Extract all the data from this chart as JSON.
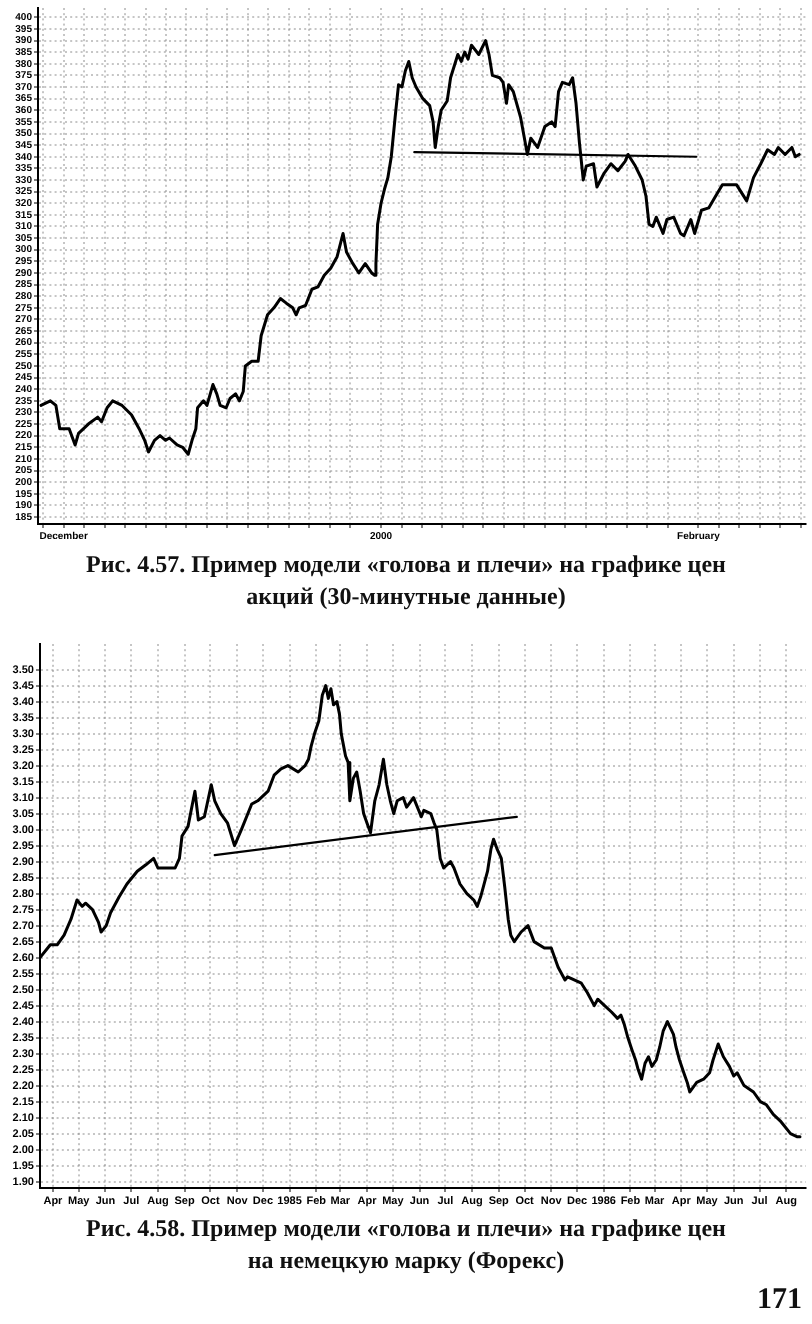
{
  "chart_data": [
    {
      "type": "line",
      "title": "Рис. 4.57. Пример модели «голова и плечи» на графике цен акций (30-минутные данные)",
      "xlim": [
        "1999-11-28T12:00",
        "2000-02-11T12:00"
      ],
      "xticks": [
        {
          "value": "1999-11-29",
          "label": null
        },
        {
          "value": "1999-12-01",
          "label": "December"
        },
        {
          "value": "1999-12-03",
          "label": null
        },
        {
          "value": "1999-12-05",
          "label": null
        },
        {
          "value": "1999-12-07",
          "label": null
        },
        {
          "value": "1999-12-09",
          "label": null
        },
        {
          "value": "1999-12-11",
          "label": null
        },
        {
          "value": "1999-12-13",
          "label": null
        },
        {
          "value": "1999-12-15",
          "label": null
        },
        {
          "value": "1999-12-17",
          "label": null
        },
        {
          "value": "1999-12-19",
          "label": null
        },
        {
          "value": "1999-12-21",
          "label": null
        },
        {
          "value": "1999-12-23",
          "label": null
        },
        {
          "value": "1999-12-25",
          "label": null
        },
        {
          "value": "1999-12-27",
          "label": null
        },
        {
          "value": "1999-12-29",
          "label": null
        },
        {
          "value": "2000-01-01",
          "label": "2000"
        },
        {
          "value": "2000-01-03",
          "label": null
        },
        {
          "value": "2000-01-05",
          "label": null
        },
        {
          "value": "2000-01-07",
          "label": null
        },
        {
          "value": "2000-01-09",
          "label": null
        },
        {
          "value": "2000-01-11",
          "label": null
        },
        {
          "value": "2000-01-13",
          "label": null
        },
        {
          "value": "2000-01-15",
          "label": null
        },
        {
          "value": "2000-01-17",
          "label": null
        },
        {
          "value": "2000-01-19",
          "label": null
        },
        {
          "value": "2000-01-21",
          "label": null
        },
        {
          "value": "2000-01-23",
          "label": null
        },
        {
          "value": "2000-01-25",
          "label": null
        },
        {
          "value": "2000-01-27",
          "label": null
        },
        {
          "value": "2000-01-29",
          "label": null
        },
        {
          "value": "2000-02-01",
          "label": "February"
        },
        {
          "value": "2000-02-03",
          "label": null
        },
        {
          "value": "2000-02-05",
          "label": null
        },
        {
          "value": "2000-02-07",
          "label": null
        },
        {
          "value": "2000-02-09",
          "label": null
        },
        {
          "value": "2000-02-11",
          "label": null
        }
      ],
      "ylim": [
        182,
        404
      ],
      "yticks": [
        185,
        190,
        195,
        200,
        205,
        210,
        215,
        220,
        225,
        230,
        235,
        240,
        245,
        250,
        255,
        260,
        265,
        270,
        275,
        280,
        285,
        290,
        295,
        300,
        305,
        310,
        315,
        320,
        325,
        330,
        335,
        340,
        345,
        350,
        355,
        360,
        365,
        370,
        375,
        380,
        385,
        390,
        395,
        400
      ],
      "grid": true,
      "series": [
        {
          "color": "#000000",
          "x": [
            "1999-11-28T19:00",
            "1999-11-29T17:00",
            "1999-11-30T06:00",
            "1999-11-30T15:00",
            "1999-12-01T13:00",
            "1999-12-02T03:00",
            "1999-12-02T11:00",
            "1999-12-03T10:00",
            "1999-12-04T08:00",
            "1999-12-04T17:00",
            "1999-12-05T06:00",
            "1999-12-05T19:00",
            "1999-12-06T17:00",
            "1999-12-07T15:00",
            "1999-12-08T09:00",
            "1999-12-08T22:00",
            "1999-12-09T07:00",
            "1999-12-09T21:00",
            "1999-12-10T10:00",
            "1999-12-10T23:00",
            "1999-12-11T08:00",
            "1999-12-12T02:00",
            "1999-12-12T15:00",
            "1999-12-13T04:00",
            "1999-12-13T13:00",
            "1999-12-13T22:00",
            "1999-12-14T02:00",
            "1999-12-14T16:00",
            "1999-12-15T00:00",
            "1999-12-15T14:00",
            "1999-12-15T23:00",
            "1999-12-16T07:00",
            "1999-12-16T21:00",
            "1999-12-17T06:00",
            "1999-12-17T19:00",
            "1999-12-18T04:00",
            "1999-12-18T13:00",
            "1999-12-18T18:00",
            "1999-12-19T09:00",
            "1999-12-20T00:00",
            "1999-12-20T07:00",
            "1999-12-20T22:00",
            "1999-12-21T13:00",
            "1999-12-22T04:00",
            "1999-12-22T18:00",
            "1999-12-23T09:00",
            "1999-12-23T17:00",
            "1999-12-24T00:00",
            "1999-12-24T15:00",
            "1999-12-25T06:00",
            "1999-12-25T20:00",
            "1999-12-26T11:00",
            "1999-12-27T02:00",
            "1999-12-27T17:00",
            "1999-12-28T07:00",
            "1999-12-28T15:00",
            "1999-12-29T06:00",
            "1999-12-29T20:00",
            "1999-12-30T11:00",
            "1999-12-31T02:00",
            "1999-12-31T09:00",
            "1999-12-31T12:00",
            "1999-12-31T16:00",
            "2000-01-01T00:00",
            "2000-01-01T08:00",
            "2000-01-01T16:00",
            "2000-01-02T00:00",
            "2000-01-02T09:00",
            "2000-01-02T17:00",
            "2000-01-03T01:00",
            "2000-01-03T09:00",
            "2000-01-03T17:00",
            "2000-01-04T01:00",
            "2000-01-04T10:00",
            "2000-01-05T02:00",
            "2000-01-05T18:00",
            "2000-01-06T02:00",
            "2000-01-06T07:00",
            "2000-01-06T14:00",
            "2000-01-06T21:00",
            "2000-01-07T11:00",
            "2000-01-07T19:00",
            "2000-01-08T12:00",
            "2000-01-08T20:00",
            "2000-01-09T04:00",
            "2000-01-09T12:00",
            "2000-01-09T20:00",
            "2000-01-10T13:00",
            "2000-01-11T05:00",
            "2000-01-11T13:00",
            "2000-01-11T21:00",
            "2000-01-12T14:00",
            "2000-01-12T22:00",
            "2000-01-13T06:00",
            "2000-01-13T11:00",
            "2000-01-13T22:00",
            "2000-01-14T15:00",
            "2000-01-15T07:00",
            "2000-01-15T15:00",
            "2000-01-16T07:00",
            "2000-01-17T00:00",
            "2000-01-17T16:00",
            "2000-01-18T00:00",
            "2000-01-18T08:00",
            "2000-01-18T17:00",
            "2000-01-19T09:00",
            "2000-01-19T17:00",
            "2000-01-20T01:00",
            "2000-01-20T09:00",
            "2000-01-20T18:00",
            "2000-01-21T01:00",
            "2000-01-21T18:00",
            "2000-01-22T02:00",
            "2000-01-22T19:00",
            "2000-01-23T11:00",
            "2000-01-24T03:00",
            "2000-01-24T20:00",
            "2000-01-25T03:00",
            "2000-01-25T20:00",
            "2000-01-26T12:00",
            "2000-01-26T21:00",
            "2000-01-27T04:00",
            "2000-01-27T13:00",
            "2000-01-27T21:00",
            "2000-01-28T13:00",
            "2000-01-28T22:00",
            "2000-01-29T14:00",
            "2000-01-30T06:00",
            "2000-01-30T14:00",
            "2000-01-31T06:00",
            "2000-01-31T15:00",
            "2000-02-01T07:00",
            "2000-02-02T00:00",
            "2000-02-02T16:00",
            "2000-02-03T08:00",
            "2000-02-04T00:00",
            "2000-02-04T17:00",
            "2000-02-05T17:00",
            "2000-02-06T09:00",
            "2000-02-07T02:00",
            "2000-02-07T18:00",
            "2000-02-08T10:00",
            "2000-02-08T19:00",
            "2000-02-09T11:00",
            "2000-02-10T03:00",
            "2000-02-10T11:00",
            "2000-02-10T20:00"
          ],
          "values": [
            233,
            235,
            233,
            223,
            223,
            216,
            221,
            225,
            228,
            226,
            232,
            235,
            233,
            229,
            223,
            218,
            213,
            218,
            220,
            218,
            219,
            216,
            215,
            212,
            218,
            223,
            232,
            235,
            233,
            242,
            238,
            233,
            232,
            236,
            238,
            235,
            239,
            250,
            252,
            252,
            263,
            272,
            275,
            279,
            277,
            275,
            272,
            275,
            276,
            283,
            284,
            289,
            292,
            297,
            307,
            299,
            294,
            290,
            294,
            290,
            289,
            294,
            311,
            320,
            326,
            331,
            340,
            357,
            371,
            370,
            377,
            381,
            374,
            370,
            365,
            362,
            355,
            344,
            353,
            360,
            364,
            374,
            384,
            381,
            385,
            382,
            388,
            384,
            390,
            384,
            375,
            374,
            372,
            363,
            371,
            368,
            357,
            341,
            348,
            344,
            353,
            355,
            353,
            368,
            372,
            371,
            374,
            363,
            346,
            330,
            336,
            337,
            327,
            333,
            337,
            334,
            338,
            341,
            336,
            330,
            323,
            311,
            310,
            314,
            307,
            313,
            314,
            307,
            306,
            313,
            307,
            317,
            318,
            323,
            328,
            328,
            328,
            321,
            331,
            337,
            343,
            341,
            344,
            341,
            344,
            340,
            341
          ]
        },
        {
          "type": "line",
          "color": "#000000",
          "x": [
            "2000-01-04T06:00",
            "2000-01-31T19:00"
          ],
          "values": [
            342,
            340
          ]
        }
      ]
    },
    {
      "type": "line",
      "title": "Рис. 4.58. Пример модели «голова и плечи» на графике цен на немецкую марку (Форекс)",
      "annotations": [
        "171"
      ],
      "xlim": [
        "1984-03-17",
        "1986-08-24"
      ],
      "xticks": [
        {
          "value": "1984-04-01",
          "label": "Apr"
        },
        {
          "value": "1984-05-01",
          "label": "May"
        },
        {
          "value": "1984-06-01",
          "label": "Jun"
        },
        {
          "value": "1984-07-01",
          "label": "Jul"
        },
        {
          "value": "1984-08-01",
          "label": "Aug"
        },
        {
          "value": "1984-09-01",
          "label": "Sep"
        },
        {
          "value": "1984-10-01",
          "label": "Oct"
        },
        {
          "value": "1984-11-01",
          "label": "Nov"
        },
        {
          "value": "1984-12-01",
          "label": "Dec"
        },
        {
          "value": "1985-01-01",
          "label": "1985"
        },
        {
          "value": "1985-02-01",
          "label": "Feb"
        },
        {
          "value": "1985-03-01",
          "label": "Mar"
        },
        {
          "value": "1985-04-01",
          "label": "Apr"
        },
        {
          "value": "1985-05-01",
          "label": "May"
        },
        {
          "value": "1985-06-01",
          "label": "Jun"
        },
        {
          "value": "1985-07-01",
          "label": "Jul"
        },
        {
          "value": "1985-08-01",
          "label": "Aug"
        },
        {
          "value": "1985-09-01",
          "label": "Sep"
        },
        {
          "value": "1985-10-01",
          "label": "Oct"
        },
        {
          "value": "1985-11-01",
          "label": "Nov"
        },
        {
          "value": "1985-12-01",
          "label": "Dec"
        },
        {
          "value": "1986-01-01",
          "label": "1986"
        },
        {
          "value": "1986-02-01",
          "label": "Feb"
        },
        {
          "value": "1986-03-01",
          "label": "Mar"
        },
        {
          "value": "1986-04-01",
          "label": "Apr"
        },
        {
          "value": "1986-05-01",
          "label": "May"
        },
        {
          "value": "1986-06-01",
          "label": "Jun"
        },
        {
          "value": "1986-07-01",
          "label": "Jul"
        },
        {
          "value": "1986-08-01",
          "label": "Aug"
        }
      ],
      "ylim": [
        1.88,
        3.58
      ],
      "yticks": [
        {
          "value": 1.9,
          "label": "1.90"
        },
        1.95,
        {
          "value": 2.0,
          "label": "2.00"
        },
        2.05,
        {
          "value": 2.1,
          "label": "2.10"
        },
        2.15,
        {
          "value": 2.2,
          "label": "2.20"
        },
        2.25,
        {
          "value": 2.3,
          "label": "2.30"
        },
        2.35,
        {
          "value": 2.4,
          "label": "2.40"
        },
        2.45,
        {
          "value": 2.5,
          "label": "2.50"
        },
        2.55,
        {
          "value": 2.6,
          "label": "2.60"
        },
        2.65,
        {
          "value": 2.7,
          "label": "2.70"
        },
        2.75,
        {
          "value": 2.8,
          "label": "2.80"
        },
        2.85,
        {
          "value": 2.9,
          "label": "2.90"
        },
        2.95,
        {
          "value": 3.0,
          "label": "3.00"
        },
        3.05,
        {
          "value": 3.1,
          "label": "3.10"
        },
        3.15,
        {
          "value": 3.2,
          "label": "3.20"
        },
        3.25,
        {
          "value": 3.3,
          "label": "3.30"
        },
        3.35,
        {
          "value": 3.4,
          "label": "3.40"
        },
        3.45,
        {
          "value": 3.5,
          "label": "3.50"
        }
      ],
      "grid": true,
      "series": [
        {
          "color": "#000000",
          "x": [
            "1984-03-17",
            "1984-03-29",
            "1984-04-06",
            "1984-04-14",
            "1984-04-22",
            "1984-04-29",
            "1984-05-05",
            "1984-05-09",
            "1984-05-17",
            "1984-05-24",
            "1984-05-27",
            "1984-06-02",
            "1984-06-07",
            "1984-06-17",
            "1984-06-26",
            "1984-07-08",
            "1984-07-18",
            "1984-07-27",
            "1984-08-01",
            "1984-08-11",
            "1984-08-21",
            "1984-08-26",
            "1984-08-29",
            "1984-09-05",
            "1984-09-13",
            "1984-09-17",
            "1984-09-24",
            "1984-10-02",
            "1984-10-06",
            "1984-10-13",
            "1984-10-21",
            "1984-10-29",
            "1984-11-06",
            "1984-11-18",
            "1984-11-25",
            "1984-12-07",
            "1984-12-14",
            "1984-12-22",
            "1984-12-30",
            "1985-01-11",
            "1985-01-19",
            "1985-01-23",
            "1985-01-26",
            "1985-01-30",
            "1985-02-04",
            "1985-02-08",
            "1985-02-12",
            "1985-02-15",
            "1985-02-18",
            "1985-02-21",
            "1985-02-25",
            "1985-02-28",
            "1985-03-02",
            "1985-03-07",
            "1985-03-10",
            "1985-03-12",
            "1985-03-16",
            "1985-03-20",
            "1985-03-24",
            "1985-03-28",
            "1985-04-01",
            "1985-04-05",
            "1985-04-07",
            "1985-04-10",
            "1985-04-15",
            "1985-04-20",
            "1985-04-24",
            "1985-04-28",
            "1985-05-02",
            "1985-05-06",
            "1985-05-13",
            "1985-05-17",
            "1985-05-25",
            "1985-06-03",
            "1985-06-06",
            "1985-06-14",
            "1985-06-18",
            "1985-06-21",
            "1985-06-25",
            "1985-06-29",
            "1985-07-07",
            "1985-07-11",
            "1985-07-18",
            "1985-07-26",
            "1985-08-03",
            "1985-08-07",
            "1985-08-11",
            "1985-08-19",
            "1985-08-23",
            "1985-08-26",
            "1985-08-30",
            "1985-09-04",
            "1985-09-08",
            "1985-09-12",
            "1985-09-15",
            "1985-09-19",
            "1985-09-27",
            "1985-10-05",
            "1985-10-12",
            "1985-10-24",
            "1985-11-01",
            "1985-11-09",
            "1985-11-17",
            "1985-11-20",
            "1985-12-06",
            "1985-12-13",
            "1985-12-21",
            "1985-12-25",
            "1986-01-02",
            "1986-01-10",
            "1986-01-17",
            "1986-01-21",
            "1986-01-25",
            "1986-01-29",
            "1986-02-03",
            "1986-02-07",
            "1986-02-10",
            "1986-02-14",
            "1986-02-18",
            "1986-02-22",
            "1986-02-26",
            "1986-03-03",
            "1986-03-07",
            "1986-03-11",
            "1986-03-16",
            "1986-03-23",
            "1986-03-26",
            "1986-03-30",
            "1986-04-04",
            "1986-04-08",
            "1986-04-11",
            "1986-04-19",
            "1986-04-27",
            "1986-05-04",
            "1986-05-08",
            "1986-05-14",
            "1986-05-20",
            "1986-05-27",
            "1986-06-01",
            "1986-06-05",
            "1986-06-13",
            "1986-06-24",
            "1986-07-02",
            "1986-07-09",
            "1986-07-17",
            "1986-07-25",
            "1986-08-06",
            "1986-08-14",
            "1986-08-17"
          ],
          "values": [
            2.6,
            2.64,
            2.64,
            2.67,
            2.72,
            2.78,
            2.76,
            2.77,
            2.75,
            2.71,
            2.68,
            2.7,
            2.74,
            2.79,
            2.83,
            2.87,
            2.89,
            2.91,
            2.88,
            2.88,
            2.88,
            2.91,
            2.98,
            3.01,
            3.12,
            3.03,
            3.04,
            3.14,
            3.09,
            3.05,
            3.02,
            2.95,
            3.0,
            3.08,
            3.09,
            3.12,
            3.17,
            3.19,
            3.2,
            3.18,
            3.2,
            3.22,
            3.26,
            3.3,
            3.34,
            3.42,
            3.45,
            3.41,
            3.44,
            3.39,
            3.4,
            3.36,
            3.3,
            3.23,
            3.21,
            3.09,
            3.16,
            3.18,
            3.12,
            3.05,
            3.02,
            2.99,
            3.03,
            3.09,
            3.14,
            3.22,
            3.14,
            3.09,
            3.05,
            3.09,
            3.1,
            3.07,
            3.1,
            3.04,
            3.06,
            3.05,
            3.02,
            3.0,
            2.91,
            2.88,
            2.9,
            2.88,
            2.83,
            2.8,
            2.78,
            2.76,
            2.79,
            2.87,
            2.94,
            2.97,
            2.94,
            2.91,
            2.82,
            2.72,
            2.67,
            2.65,
            2.68,
            2.7,
            2.65,
            2.63,
            2.63,
            2.57,
            2.53,
            2.54,
            2.52,
            2.49,
            2.45,
            2.47,
            2.45,
            2.43,
            2.41,
            2.42,
            2.39,
            2.35,
            2.31,
            2.28,
            2.25,
            2.22,
            2.27,
            2.29,
            2.26,
            2.28,
            2.32,
            2.37,
            2.4,
            2.36,
            2.32,
            2.28,
            2.24,
            2.21,
            2.18,
            2.21,
            2.22,
            2.24,
            2.28,
            2.33,
            2.29,
            2.26,
            2.23,
            2.24,
            2.2,
            2.18,
            2.15,
            2.14,
            2.11,
            2.09,
            2.05,
            2.04,
            2.04
          ]
        },
        {
          "type": "line",
          "color": "#000000",
          "x": [
            "1984-10-06",
            "1985-09-22"
          ],
          "values": [
            2.92,
            3.04
          ]
        }
      ]
    }
  ]
}
